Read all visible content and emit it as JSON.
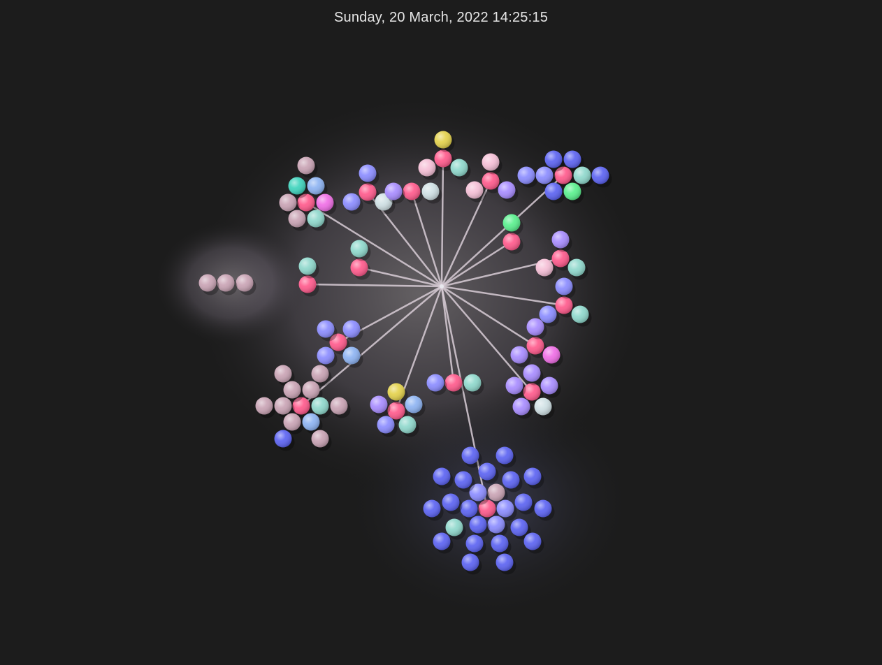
{
  "header": {
    "timestamp": "Sunday, 20 March, 2022 14:25:15"
  },
  "colors": {
    "background": "#1c1c1c",
    "hub": "#ff5a8c",
    "mauve": "#c9a3b4",
    "blue": "#5c63f2",
    "periwinkle": "#8b8cff",
    "violet": "#a88cff",
    "teal": "#8fd8cc",
    "pale": "#cfe0e4",
    "yellow": "#e4d24c",
    "green": "#5af08e",
    "magenta": "#f06ee6",
    "pink": "#f5bfd6",
    "lightblue": "#8db3f2",
    "aqua": "#3fd4bd"
  },
  "diagram": {
    "root": "center",
    "nodes": [
      {
        "id": "center",
        "c": "pale"
      },
      {
        "id": "h1",
        "c": "hub"
      },
      {
        "id": "h1a",
        "c": "mauve"
      },
      {
        "id": "h1b",
        "c": "aqua"
      },
      {
        "id": "h1c",
        "c": "lightblue"
      },
      {
        "id": "h1d",
        "c": "mauve"
      },
      {
        "id": "h1e",
        "c": "magenta"
      },
      {
        "id": "h1f",
        "c": "mauve"
      },
      {
        "id": "h1g",
        "c": "teal"
      },
      {
        "id": "h2",
        "c": "hub"
      },
      {
        "id": "h2a",
        "c": "periwinkle"
      },
      {
        "id": "h2b",
        "c": "periwinkle"
      },
      {
        "id": "h2c",
        "c": "pale"
      },
      {
        "id": "h3",
        "c": "hub"
      },
      {
        "id": "h3a",
        "c": "violet"
      },
      {
        "id": "h3b",
        "c": "pale"
      },
      {
        "id": "h4",
        "c": "hub"
      },
      {
        "id": "h4a",
        "c": "yellow"
      },
      {
        "id": "h4b",
        "c": "pink"
      },
      {
        "id": "h4c",
        "c": "teal"
      },
      {
        "id": "h5",
        "c": "hub"
      },
      {
        "id": "h5a",
        "c": "pink"
      },
      {
        "id": "h5b",
        "c": "pink"
      },
      {
        "id": "h5c",
        "c": "violet"
      },
      {
        "id": "h6",
        "c": "hub"
      },
      {
        "id": "h6a",
        "c": "blue"
      },
      {
        "id": "h6b",
        "c": "blue"
      },
      {
        "id": "h6c",
        "c": "periwinkle"
      },
      {
        "id": "h6d",
        "c": "periwinkle"
      },
      {
        "id": "h6e",
        "c": "teal"
      },
      {
        "id": "h6f",
        "c": "blue"
      },
      {
        "id": "h6g",
        "c": "blue"
      },
      {
        "id": "h6h",
        "c": "green"
      },
      {
        "id": "h7",
        "c": "hub"
      },
      {
        "id": "h7a",
        "c": "green"
      },
      {
        "id": "h8",
        "c": "hub"
      },
      {
        "id": "h8a",
        "c": "teal"
      },
      {
        "id": "h9",
        "c": "hub"
      },
      {
        "id": "h9a",
        "c": "pink"
      },
      {
        "id": "h9b",
        "c": "violet"
      },
      {
        "id": "h9c",
        "c": "teal"
      },
      {
        "id": "h10",
        "c": "hub"
      },
      {
        "id": "h10a",
        "c": "periwinkle"
      },
      {
        "id": "h10b",
        "c": "periwinkle"
      },
      {
        "id": "h10c",
        "c": "teal"
      },
      {
        "id": "h11",
        "c": "hub"
      },
      {
        "id": "h11a",
        "c": "mauve"
      },
      {
        "id": "h11b",
        "c": "mauve"
      },
      {
        "id": "h11c",
        "c": "mauve"
      },
      {
        "id": "h11d",
        "c": "teal"
      },
      {
        "id": "h12",
        "c": "hub"
      },
      {
        "id": "h12a",
        "c": "periwinkle"
      },
      {
        "id": "h12b",
        "c": "periwinkle"
      },
      {
        "id": "h12c",
        "c": "periwinkle"
      },
      {
        "id": "h12d",
        "c": "lightblue"
      },
      {
        "id": "h13",
        "c": "hub"
      },
      {
        "id": "h13a",
        "c": "violet"
      },
      {
        "id": "h13b",
        "c": "violet"
      },
      {
        "id": "h13c",
        "c": "magenta"
      },
      {
        "id": "h14",
        "c": "hub"
      },
      {
        "id": "h14a",
        "c": "violet"
      },
      {
        "id": "h14b",
        "c": "violet"
      },
      {
        "id": "h14c",
        "c": "violet"
      },
      {
        "id": "h14d",
        "c": "violet"
      },
      {
        "id": "h14e",
        "c": "pale"
      },
      {
        "id": "h15",
        "c": "hub"
      },
      {
        "id": "h15a",
        "c": "periwinkle"
      },
      {
        "id": "h15b",
        "c": "teal"
      },
      {
        "id": "h16",
        "c": "hub"
      },
      {
        "id": "h16a",
        "c": "yellow"
      },
      {
        "id": "h16b",
        "c": "violet"
      },
      {
        "id": "h16c",
        "c": "lightblue"
      },
      {
        "id": "h16d",
        "c": "periwinkle"
      },
      {
        "id": "h16e",
        "c": "teal"
      },
      {
        "id": "h17",
        "c": "hub"
      },
      {
        "id": "h17a",
        "c": "mauve"
      },
      {
        "id": "h17b",
        "c": "mauve"
      },
      {
        "id": "h17c",
        "c": "mauve"
      },
      {
        "id": "h17d",
        "c": "mauve"
      },
      {
        "id": "h17e",
        "c": "mauve"
      },
      {
        "id": "h17f",
        "c": "mauve"
      },
      {
        "id": "h17g",
        "c": "teal"
      },
      {
        "id": "h17h",
        "c": "mauve"
      },
      {
        "id": "h17i",
        "c": "mauve"
      },
      {
        "id": "h17j",
        "c": "lightblue"
      },
      {
        "id": "h17k",
        "c": "blue"
      },
      {
        "id": "h17l",
        "c": "mauve"
      },
      {
        "id": "h18",
        "c": "hub"
      },
      {
        "id": "h18a",
        "c": "mauve"
      },
      {
        "id": "h18b",
        "c": "periwinkle"
      },
      {
        "id": "h18c",
        "c": "periwinkle"
      },
      {
        "id": "h18d",
        "c": "periwinkle"
      },
      {
        "id": "h18e",
        "c": "teal"
      },
      {
        "id": "h18f",
        "c": "blue"
      },
      {
        "id": "h18g",
        "c": "blue"
      },
      {
        "id": "h18h",
        "c": "blue"
      },
      {
        "id": "h18i",
        "c": "blue"
      },
      {
        "id": "h18j",
        "c": "blue"
      },
      {
        "id": "h18k",
        "c": "blue"
      },
      {
        "id": "h18l",
        "c": "blue"
      },
      {
        "id": "h18m",
        "c": "blue"
      },
      {
        "id": "h18n",
        "c": "blue"
      },
      {
        "id": "h18o",
        "c": "blue"
      },
      {
        "id": "h18p",
        "c": "blue"
      },
      {
        "id": "h18q",
        "c": "blue"
      },
      {
        "id": "h18r",
        "c": "blue"
      },
      {
        "id": "h18s",
        "c": "blue"
      },
      {
        "id": "h18t",
        "c": "blue"
      },
      {
        "id": "h18u",
        "c": "blue"
      },
      {
        "id": "h18v",
        "c": "blue"
      },
      {
        "id": "h18w",
        "c": "blue"
      }
    ],
    "edges": [
      [
        "center",
        "h1"
      ],
      [
        "center",
        "h2"
      ],
      [
        "center",
        "h3"
      ],
      [
        "center",
        "h4"
      ],
      [
        "center",
        "h5"
      ],
      [
        "center",
        "h6"
      ],
      [
        "center",
        "h7"
      ],
      [
        "center",
        "h8"
      ],
      [
        "center",
        "h9"
      ],
      [
        "center",
        "h10"
      ],
      [
        "center",
        "h11"
      ],
      [
        "center",
        "h12"
      ],
      [
        "center",
        "h13"
      ],
      [
        "center",
        "h14"
      ],
      [
        "center",
        "h15"
      ],
      [
        "center",
        "h16"
      ],
      [
        "center",
        "h17"
      ],
      [
        "center",
        "h18"
      ]
    ]
  }
}
